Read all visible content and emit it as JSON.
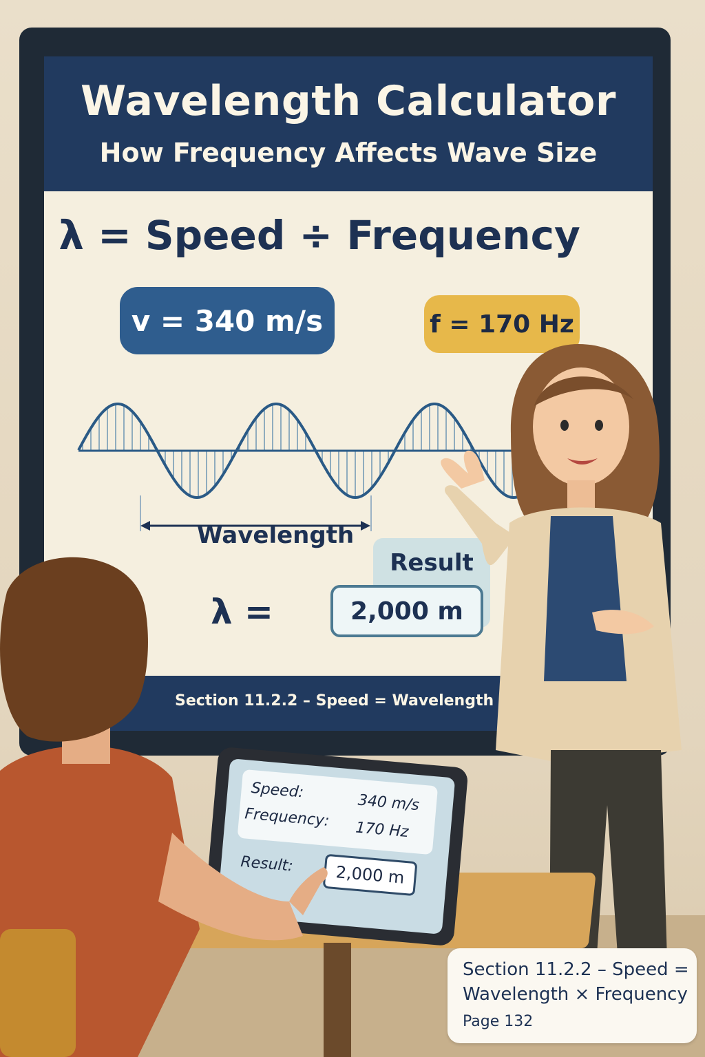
{
  "board": {
    "title": "Wavelength Calculator",
    "subtitle": "How Frequency Affects Wave Size",
    "formula": "λ = Speed ÷ Frequency",
    "speed_pill": "v = 340 m/s",
    "frequency_pill": "f = 170 Hz",
    "wavelength_label": "Wavelength",
    "result_label": "Result",
    "lambda_eq": "λ =",
    "result_value": "2,000 m",
    "footer": "Section 11.2.2 – Speed = Wavelength × Frequency"
  },
  "tablet": {
    "speed_label": "Speed:",
    "speed_value": "340 m/s",
    "frequency_label": "Frequency:",
    "frequency_value": "170 Hz",
    "result_label": "Result:",
    "result_value": "2,000 m"
  },
  "caption": {
    "line1": "Section 11.2.2 – Speed =",
    "line2": "Wavelength × Frequency",
    "page": "Page 132"
  },
  "colors": {
    "header": "#213a5f",
    "speed_pill": "#2f5d8e",
    "frequency_pill": "#e7b84a",
    "board_bg": "#f5efdf",
    "text_dark": "#1d3153"
  }
}
